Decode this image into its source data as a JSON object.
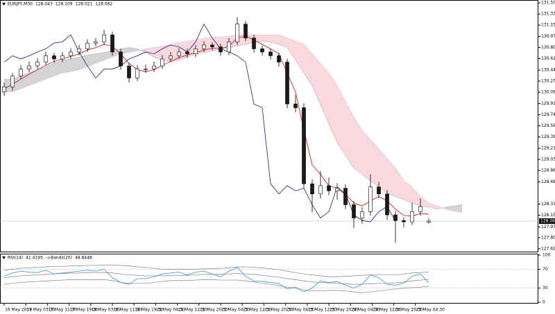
{
  "chart_data": {
    "type": "candlestick",
    "symbol": "EURJPY,M30",
    "ohlc": [
      128.043,
      128.109,
      128.021,
      128.062
    ],
    "candles": [
      [
        130.1,
        130.25,
        130.04,
        130.18
      ],
      [
        130.18,
        130.4,
        130.12,
        130.35
      ],
      [
        130.35,
        130.52,
        130.3,
        130.46
      ],
      [
        130.46,
        130.58,
        130.41,
        130.51
      ],
      [
        130.51,
        130.63,
        130.46,
        130.57
      ],
      [
        130.57,
        130.74,
        130.52,
        130.67
      ],
      [
        130.67,
        130.72,
        130.56,
        130.62
      ],
      [
        130.62,
        130.73,
        130.57,
        130.67
      ],
      [
        130.67,
        130.79,
        130.62,
        130.73
      ],
      [
        130.73,
        130.84,
        130.68,
        130.78
      ],
      [
        130.78,
        130.93,
        130.73,
        130.87
      ],
      [
        130.87,
        130.95,
        130.82,
        130.89
      ],
      [
        130.89,
        131.08,
        130.84,
        131.0
      ],
      [
        131.0,
        131.05,
        130.67,
        130.73
      ],
      [
        130.73,
        130.78,
        130.45,
        130.51
      ],
      [
        130.51,
        130.56,
        130.25,
        130.32
      ],
      [
        130.32,
        130.52,
        130.27,
        130.46
      ],
      [
        130.46,
        130.53,
        130.4,
        130.46
      ],
      [
        130.46,
        130.58,
        130.41,
        130.51
      ],
      [
        130.51,
        130.68,
        130.46,
        130.62
      ],
      [
        130.62,
        130.73,
        130.57,
        130.67
      ],
      [
        130.67,
        130.79,
        130.62,
        130.73
      ],
      [
        130.73,
        130.78,
        130.64,
        130.7
      ],
      [
        130.7,
        130.84,
        130.65,
        130.78
      ],
      [
        130.78,
        130.9,
        130.73,
        130.84
      ],
      [
        130.84,
        130.88,
        130.75,
        130.81
      ],
      [
        130.81,
        130.86,
        130.67,
        130.73
      ],
      [
        130.73,
        130.95,
        130.68,
        130.89
      ],
      [
        130.89,
        131.28,
        130.84,
        131.17
      ],
      [
        131.17,
        131.22,
        130.9,
        130.95
      ],
      [
        130.95,
        131.0,
        130.72,
        130.78
      ],
      [
        130.78,
        130.83,
        130.67,
        130.73
      ],
      [
        130.73,
        130.78,
        130.61,
        130.67
      ],
      [
        130.67,
        130.72,
        130.5,
        130.57
      ],
      [
        130.57,
        130.62,
        129.84,
        129.91
      ],
      [
        129.91,
        130.05,
        129.78,
        129.85
      ],
      [
        129.85,
        129.92,
        128.58,
        128.65
      ],
      [
        128.65,
        128.72,
        128.2,
        128.49
      ],
      [
        128.49,
        128.85,
        128.42,
        128.62
      ],
      [
        128.62,
        128.75,
        128.47,
        128.54
      ],
      [
        128.54,
        128.66,
        128.4,
        128.58
      ],
      [
        128.58,
        128.64,
        128.25,
        128.32
      ],
      [
        128.32,
        128.38,
        127.95,
        128.11
      ],
      [
        128.11,
        128.28,
        128.02,
        128.21
      ],
      [
        128.21,
        128.8,
        128.15,
        128.6
      ],
      [
        128.6,
        128.68,
        128.42,
        128.49
      ],
      [
        128.49,
        128.55,
        128.08,
        128.16
      ],
      [
        128.16,
        128.22,
        127.72,
        128.07
      ],
      [
        128.07,
        128.12,
        127.96,
        128.05
      ],
      [
        128.05,
        128.35,
        128.0,
        128.21
      ],
      [
        128.21,
        128.42,
        128.15,
        128.29
      ],
      [
        128.043,
        128.109,
        128.021,
        128.062
      ]
    ],
    "tenkan": [
      130.15,
      130.22,
      130.3,
      130.38,
      130.45,
      130.52,
      130.58,
      130.62,
      130.66,
      130.7,
      130.76,
      130.8,
      130.85,
      130.82,
      130.7,
      130.55,
      130.45,
      130.42,
      130.45,
      130.52,
      130.58,
      130.64,
      130.68,
      130.72,
      130.76,
      130.79,
      130.78,
      130.82,
      130.95,
      130.98,
      130.92,
      130.85,
      130.78,
      130.7,
      130.4,
      130.1,
      129.5,
      128.95,
      128.8,
      128.62,
      128.58,
      128.48,
      128.35,
      128.3,
      128.38,
      128.45,
      128.38,
      128.25,
      128.15,
      128.14,
      128.18,
      128.17
    ],
    "chikou": [
      130.57,
      130.67,
      130.62,
      130.67,
      130.73,
      130.78,
      130.87,
      130.89,
      131.0,
      130.73,
      130.51,
      130.32,
      130.46,
      130.46,
      130.51,
      130.62,
      130.67,
      130.73,
      130.7,
      130.78,
      130.84,
      130.81,
      130.73,
      130.89,
      131.17,
      130.95,
      130.78,
      130.73,
      130.67,
      130.57,
      129.91,
      129.85,
      128.65,
      128.49,
      128.62,
      128.54,
      128.58,
      128.32,
      128.11,
      128.21,
      128.6,
      128.49,
      128.16,
      128.07,
      128.05,
      128.21,
      128.29,
      128.062,
      null,
      null,
      null,
      null
    ],
    "span_a": [
      130.3,
      130.3,
      130.35,
      130.4,
      130.45,
      130.5,
      130.55,
      130.6,
      130.62,
      130.65,
      130.68,
      130.7,
      130.72,
      130.75,
      130.78,
      130.8,
      130.78,
      130.72,
      130.65,
      130.6,
      130.58,
      130.6,
      130.65,
      130.7,
      130.72,
      130.75,
      130.78,
      130.8,
      130.82,
      130.85,
      130.88,
      130.9,
      130.88,
      130.85,
      130.8,
      130.6,
      130.4,
      130.2,
      129.9,
      129.6,
      129.3,
      129.1,
      128.9,
      128.8,
      128.7,
      128.6,
      128.5,
      128.45,
      128.4,
      128.35,
      128.3,
      128.28,
      128.25,
      128.28,
      128.3,
      128.32
    ],
    "span_b": [
      130.1,
      130.1,
      130.15,
      130.2,
      130.25,
      130.3,
      130.35,
      130.4,
      130.42,
      130.45,
      130.5,
      130.55,
      130.6,
      130.65,
      130.7,
      130.72,
      130.75,
      130.78,
      130.8,
      130.82,
      130.85,
      130.88,
      130.9,
      130.92,
      130.95,
      130.96,
      130.97,
      130.98,
      131.0,
      131.0,
      131.0,
      131.0,
      131.0,
      131.0,
      130.95,
      130.9,
      130.85,
      130.7,
      130.55,
      130.4,
      130.2,
      129.95,
      129.7,
      129.5,
      129.35,
      129.2,
      129.05,
      128.9,
      128.7,
      128.6,
      128.45,
      128.35,
      128.3,
      128.25,
      128.22,
      128.2
    ],
    "colors": {
      "bull": "#ffffff",
      "bear": "#1a1a1a",
      "tenkan": "#e00000",
      "chikou": "#1c1c7a",
      "cloud_up": "#b0b0b0",
      "cloud_down": "#f6b8c4",
      "rsi": "#3a8fe0",
      "bands": "#808080"
    },
    "ylim": [
      127.58,
      131.55
    ],
    "yticks": [
      {
        "value": 131.505,
        "label": "131.505"
      },
      {
        "value": 131.33,
        "label": "131.330"
      },
      {
        "value": 131.155,
        "label": "131.155"
      },
      {
        "value": 130.975,
        "label": "130.975"
      },
      {
        "value": 130.8,
        "label": "130.800"
      },
      {
        "value": 130.625,
        "label": "130.625"
      },
      {
        "value": 130.445,
        "label": "130.445"
      },
      {
        "value": 130.27,
        "label": "130.270"
      },
      {
        "value": 130.095,
        "label": "130.095"
      },
      {
        "value": 129.915,
        "label": "129.915"
      },
      {
        "value": 129.74,
        "label": "129.740"
      },
      {
        "value": 129.565,
        "label": "129.565"
      },
      {
        "value": 129.39,
        "label": "129.390"
      },
      {
        "value": 129.21,
        "label": "129.210"
      },
      {
        "value": 129.035,
        "label": "129.035"
      },
      {
        "value": 128.86,
        "label": "128.860"
      },
      {
        "value": 128.68,
        "label": "128.680"
      },
      {
        "value": 128.33,
        "label": "128.330"
      },
      {
        "value": 128.155,
        "label": "128.155"
      },
      {
        "value": 127.97,
        "label": "127.970"
      },
      {
        "value": 127.8,
        "label": "127.800"
      },
      {
        "value": 127.625,
        "label": "127.625"
      }
    ],
    "xticks": [
      {
        "value": 0,
        "label": "16 May 2018"
      },
      {
        "value": 2.6,
        "label": "17 May 03:30"
      },
      {
        "value": 5.2,
        "label": "17 May 11:30"
      },
      {
        "value": 7.8,
        "label": "17 May 19:30"
      },
      {
        "value": 10.4,
        "label": "18 May 03:30"
      },
      {
        "value": 13,
        "label": "18 May 11:30"
      },
      {
        "value": 15.6,
        "label": "18 May 19:30"
      },
      {
        "value": 18.2,
        "label": "21 May 04:30"
      },
      {
        "value": 20.8,
        "label": "21 May 12:30"
      },
      {
        "value": 23.4,
        "label": "21 May 20:30"
      },
      {
        "value": 26,
        "label": "22 May 04:30"
      },
      {
        "value": 28.6,
        "label": "22 May 12:30"
      },
      {
        "value": 31.2,
        "label": "22 May 20:30"
      },
      {
        "value": 33.8,
        "label": "23 May 04:30"
      },
      {
        "value": 36.4,
        "label": "23 May 12:30"
      },
      {
        "value": 39,
        "label": "23 May 20:30"
      },
      {
        "value": 41.6,
        "label": "24 May 04:30"
      },
      {
        "value": 44.2,
        "label": "24 May 12:30"
      },
      {
        "value": 46.8,
        "label": "24 May 20:30"
      },
      {
        "value": 49.4,
        "label": "25 May 04:30"
      }
    ],
    "rsi": {
      "label": "RSI(14)",
      "value": 41.4195,
      "bands_label": "->Bands(20)",
      "bands_value": 48.8448,
      "ylim": [
        0,
        100
      ],
      "yticks": [
        100,
        70,
        30,
        0
      ],
      "levels": [
        70,
        30
      ],
      "values": [
        55,
        62,
        66,
        64,
        63,
        68,
        60,
        62,
        64,
        66,
        68,
        66,
        70,
        52,
        42,
        38,
        50,
        50,
        54,
        60,
        62,
        64,
        58,
        64,
        66,
        60,
        54,
        66,
        74,
        55,
        45,
        44,
        42,
        40,
        28,
        32,
        22,
        30,
        45,
        42,
        44,
        36,
        30,
        38,
        58,
        52,
        38,
        36,
        40,
        55,
        60,
        41.4195
      ],
      "upper": [
        68,
        70,
        72,
        73,
        74,
        75,
        76,
        76,
        77,
        77,
        78,
        78,
        79,
        79,
        78,
        77,
        75,
        74,
        72,
        70,
        70,
        70,
        70,
        70,
        71,
        71,
        72,
        73,
        75,
        75,
        74,
        73,
        71,
        69,
        66,
        63,
        60,
        58,
        56,
        54,
        54,
        55,
        56,
        57,
        58,
        58,
        58,
        58,
        60,
        62,
        63,
        64
      ],
      "middle": [
        52,
        54,
        56,
        57,
        58,
        59,
        60,
        61,
        62,
        62,
        63,
        63,
        63,
        62,
        60,
        58,
        57,
        56,
        56,
        56,
        57,
        57,
        57,
        58,
        59,
        59,
        59,
        60,
        61,
        60,
        59,
        57,
        55,
        53,
        50,
        48,
        45,
        43,
        42,
        41,
        40,
        39,
        38,
        38,
        39,
        40,
        40,
        41,
        43,
        45,
        47,
        48.8448
      ],
      "lower": [
        38,
        40,
        42,
        43,
        44,
        45,
        46,
        47,
        48,
        48,
        48,
        48,
        48,
        46,
        42,
        40,
        40,
        40,
        42,
        44,
        46,
        46,
        46,
        47,
        48,
        48,
        47,
        47,
        47,
        45,
        43,
        40,
        38,
        35,
        32,
        30,
        26,
        24,
        24,
        25,
        25,
        24,
        22,
        20,
        22,
        24,
        26,
        28,
        30,
        31,
        32,
        34
      ]
    }
  }
}
